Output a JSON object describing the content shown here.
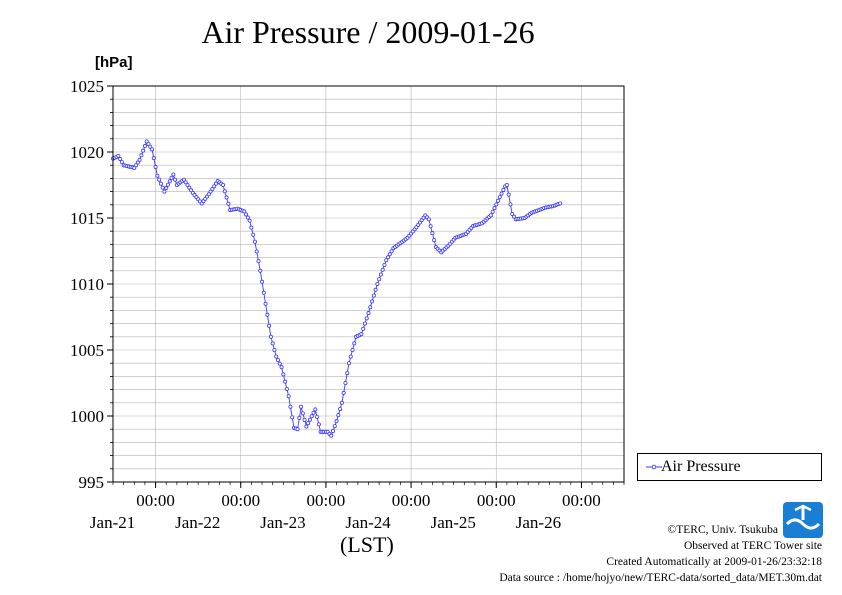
{
  "chart_data": {
    "type": "line",
    "title": "Air Pressure / 2009-01-26",
    "ylabel": "[hPa]",
    "xlabel": "(LST)",
    "ylim": [
      995,
      1025
    ],
    "y_ticks": [
      995,
      1000,
      1005,
      1010,
      1015,
      1020,
      1025
    ],
    "x_range_days": [
      -0.5,
      5.5
    ],
    "x_ticks": [
      {
        "day": 0,
        "time": "00:00",
        "date": "Jan-21"
      },
      {
        "day": 1,
        "time": "00:00",
        "date": "Jan-22"
      },
      {
        "day": 2,
        "time": "00:00",
        "date": "Jan-23"
      },
      {
        "day": 3,
        "time": "00:00",
        "date": "Jan-24"
      },
      {
        "day": 4,
        "time": "00:00",
        "date": "Jan-25"
      },
      {
        "day": 5,
        "time": "00:00",
        "date": "Jan-26"
      }
    ],
    "grid": true,
    "legend_position": "right",
    "series": [
      {
        "name": "Air Pressure",
        "color": "#3a3aff",
        "marker": "circle",
        "sample_interval_minutes": 30,
        "keypoints": [
          [
            "2009-01-20T12:00",
            1019.5
          ],
          [
            "2009-01-20T13:30",
            1019.7
          ],
          [
            "2009-01-20T15:00",
            1019.0
          ],
          [
            "2009-01-20T18:00",
            1018.8
          ],
          [
            "2009-01-20T19:30",
            1019.4
          ],
          [
            "2009-01-20T21:30",
            1020.8
          ],
          [
            "2009-01-20T23:00",
            1020.2
          ],
          [
            "2009-01-21T00:30",
            1018.2
          ],
          [
            "2009-01-21T02:30",
            1017.0
          ],
          [
            "2009-01-21T05:00",
            1018.3
          ],
          [
            "2009-01-21T06:00",
            1017.5
          ],
          [
            "2009-01-21T08:00",
            1017.9
          ],
          [
            "2009-01-21T10:30",
            1016.9
          ],
          [
            "2009-01-21T13:00",
            1016.1
          ],
          [
            "2009-01-21T15:00",
            1016.8
          ],
          [
            "2009-01-21T17:30",
            1017.8
          ],
          [
            "2009-01-21T19:00",
            1017.5
          ],
          [
            "2009-01-21T21:00",
            1015.6
          ],
          [
            "2009-01-21T23:00",
            1015.7
          ],
          [
            "2009-01-22T01:00",
            1015.5
          ],
          [
            "2009-01-22T02:30",
            1014.8
          ],
          [
            "2009-01-22T04:00",
            1013.2
          ],
          [
            "2009-01-22T05:30",
            1011.0
          ],
          [
            "2009-01-22T07:00",
            1008.5
          ],
          [
            "2009-01-22T08:30",
            1006.0
          ],
          [
            "2009-01-22T10:00",
            1004.5
          ],
          [
            "2009-01-22T11:30",
            1003.7
          ],
          [
            "2009-01-22T13:30",
            1001.5
          ],
          [
            "2009-01-22T15:00",
            999.1
          ],
          [
            "2009-01-22T16:00",
            999.0
          ],
          [
            "2009-01-22T17:00",
            1000.7
          ],
          [
            "2009-01-22T18:30",
            999.2
          ],
          [
            "2009-01-22T21:00",
            1000.5
          ],
          [
            "2009-01-22T22:30",
            998.8
          ],
          [
            "2009-01-23T00:30",
            998.8
          ],
          [
            "2009-01-23T01:30",
            998.5
          ],
          [
            "2009-01-23T03:00",
            999.6
          ],
          [
            "2009-01-23T04:30",
            1001.0
          ],
          [
            "2009-01-23T06:30",
            1004.0
          ],
          [
            "2009-01-23T08:30",
            1006.0
          ],
          [
            "2009-01-23T10:00",
            1006.2
          ],
          [
            "2009-01-23T12:00",
            1007.8
          ],
          [
            "2009-01-23T14:30",
            1010.0
          ],
          [
            "2009-01-23T17:00",
            1011.8
          ],
          [
            "2009-01-23T19:00",
            1012.7
          ],
          [
            "2009-01-23T21:30",
            1013.2
          ],
          [
            "2009-01-23T23:00",
            1013.5
          ],
          [
            "2009-01-24T01:30",
            1014.3
          ],
          [
            "2009-01-24T04:00",
            1015.2
          ],
          [
            "2009-01-24T05:00",
            1014.9
          ],
          [
            "2009-01-24T07:00",
            1012.8
          ],
          [
            "2009-01-24T08:30",
            1012.4
          ],
          [
            "2009-01-24T10:30",
            1012.9
          ],
          [
            "2009-01-24T12:30",
            1013.5
          ],
          [
            "2009-01-24T15:30",
            1013.8
          ],
          [
            "2009-01-24T17:30",
            1014.4
          ],
          [
            "2009-01-24T20:00",
            1014.6
          ],
          [
            "2009-01-24T22:30",
            1015.2
          ],
          [
            "2009-01-25T00:30",
            1016.3
          ],
          [
            "2009-01-25T02:30",
            1017.4
          ],
          [
            "2009-01-25T03:00",
            1017.5
          ],
          [
            "2009-01-25T04:30",
            1015.3
          ],
          [
            "2009-01-25T05:30",
            1014.9
          ],
          [
            "2009-01-25T08:00",
            1015.0
          ],
          [
            "2009-01-25T10:00",
            1015.4
          ],
          [
            "2009-01-25T12:00",
            1015.6
          ],
          [
            "2009-01-25T14:00",
            1015.8
          ],
          [
            "2009-01-25T16:00",
            1015.9
          ],
          [
            "2009-01-25T18:00",
            1016.1
          ]
        ]
      }
    ]
  },
  "footer": {
    "copyright": "©TERC, Univ. Tsukuba",
    "observed": "Observed at TERC Tower site",
    "created": "Created Automatically at 2009-01-26/23:32:18",
    "source": "Data source : /home/hojyo/new/TERC-data/sorted_data/MET.30m.dat",
    "logo_text": "TERC"
  }
}
